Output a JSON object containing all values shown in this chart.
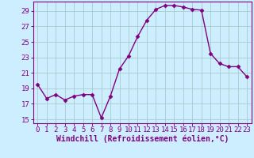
{
  "x": [
    0,
    1,
    2,
    3,
    4,
    5,
    6,
    7,
    8,
    9,
    10,
    11,
    12,
    13,
    14,
    15,
    16,
    17,
    18,
    19,
    20,
    21,
    22,
    23
  ],
  "y": [
    19.5,
    17.7,
    18.2,
    17.5,
    18.0,
    18.2,
    18.2,
    15.2,
    18.0,
    21.5,
    23.2,
    25.7,
    27.8,
    29.2,
    29.7,
    29.7,
    29.5,
    29.2,
    29.1,
    23.5,
    22.2,
    21.8,
    21.8,
    20.5
  ],
  "line_color": "#800080",
  "marker": "D",
  "marker_size": 2.5,
  "background_color": "#cceeff",
  "grid_color": "#aacccc",
  "xlabel": "Windchill (Refroidissement éolien,°C)",
  "ylim_min": 14.5,
  "ylim_max": 30.2,
  "xlim_min": -0.5,
  "xlim_max": 23.5,
  "yticks": [
    15,
    17,
    19,
    21,
    23,
    25,
    27,
    29
  ],
  "xticks": [
    0,
    1,
    2,
    3,
    4,
    5,
    6,
    7,
    8,
    9,
    10,
    11,
    12,
    13,
    14,
    15,
    16,
    17,
    18,
    19,
    20,
    21,
    22,
    23
  ],
  "tick_label_fontsize": 6.5,
  "xlabel_fontsize": 7.0,
  "line_width": 1.0,
  "marker_color": "#800080",
  "spine_color": "#800080"
}
